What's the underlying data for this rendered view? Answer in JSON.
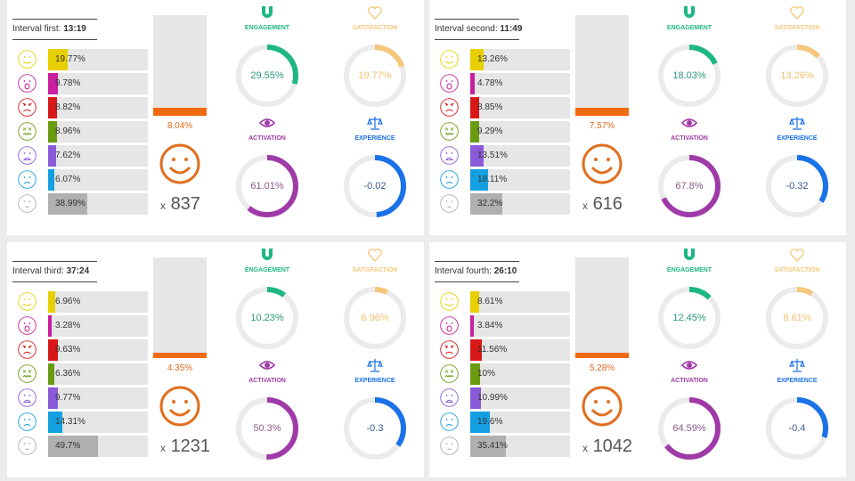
{
  "emotions": [
    {
      "icon": "happy-face-icon",
      "color": "#e8d000"
    },
    {
      "icon": "surprised-face-icon",
      "color": "#c81ea0"
    },
    {
      "icon": "angry-face-icon",
      "color": "#d81818"
    },
    {
      "icon": "disgusted-face-icon",
      "color": "#6a9a10"
    },
    {
      "icon": "fearful-face-icon",
      "color": "#8a5ad8"
    },
    {
      "icon": "sad-face-icon",
      "color": "#14a0e0"
    },
    {
      "icon": "neutral-face-icon",
      "color": "#b0b0b0"
    }
  ],
  "metric_labels": {
    "engagement": "ENGAGEMENT",
    "satisfaction": "SATISFACTION",
    "activation": "ACTIVATION",
    "experience": "EXPERIENCE"
  },
  "metric_colors": {
    "engagement": "#1db784",
    "satisfaction": "#f5c77a",
    "activation": "#a03aa8",
    "experience": "#1a72e8"
  },
  "panels": [
    {
      "label": "Interval first:",
      "time": "13:19",
      "emotions": [
        "19.77%",
        "9.78%",
        "8.82%",
        "8.96%",
        "7.62%",
        "6.07%",
        "38.99%"
      ],
      "bar_pct": "8.04%",
      "count_prefix": "x",
      "count": "837",
      "engagement": "29.55%",
      "satisfaction": "19.77%",
      "activation": "61.01%",
      "experience": "-0.02"
    },
    {
      "label": "Interval second:",
      "time": "11:49",
      "emotions": [
        "13.26%",
        "4.78%",
        "8.85%",
        "9.29%",
        "13.51%",
        "18.11%",
        "32.2%"
      ],
      "bar_pct": "7.57%",
      "count_prefix": "x",
      "count": "616",
      "engagement": "18.03%",
      "satisfaction": "13.26%",
      "activation": "67.8%",
      "experience": "-0.32"
    },
    {
      "label": "Interval third:",
      "time": "37:24",
      "emotions": [
        "6.96%",
        "3.28%",
        "9.63%",
        "6.36%",
        "9.77%",
        "14.31%",
        "49.7%"
      ],
      "bar_pct": "4.35%",
      "count_prefix": "x",
      "count": "1231",
      "engagement": "10.23%",
      "satisfaction": "6.96%",
      "activation": "50.3%",
      "experience": "-0.3"
    },
    {
      "label": "Interval fourth:",
      "time": "26:10",
      "emotions": [
        "8.61%",
        "3.84%",
        "11.56%",
        "10%",
        "10.99%",
        "19.6%",
        "35.41%"
      ],
      "bar_pct": "5.28%",
      "count_prefix": "x",
      "count": "1042",
      "engagement": "12.45%",
      "satisfaction": "8.61%",
      "activation": "64.59%",
      "experience": "-0.4"
    }
  ]
}
